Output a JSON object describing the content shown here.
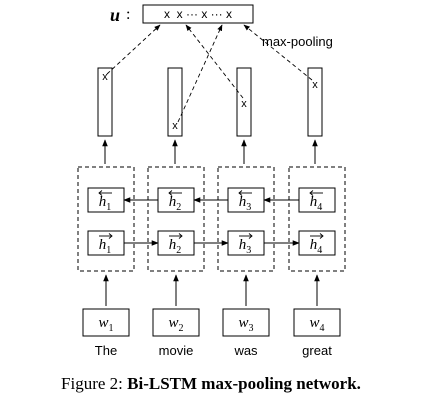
{
  "figure": {
    "output_label": "u",
    "output_colon": ":",
    "output_vector": "x  x ··· x ··· x",
    "pooling_label": "max-pooling",
    "marker": "x",
    "backward_states": [
      "h1",
      "h2",
      "h3",
      "h4"
    ],
    "forward_states": [
      "h1",
      "h2",
      "h3",
      "h4"
    ],
    "inputs": [
      "w1",
      "w2",
      "w3",
      "w4"
    ],
    "words": [
      "The",
      "movie",
      "was",
      "great"
    ]
  },
  "caption": {
    "prefix": "Figure 2: ",
    "title": "Bi-LSTM max-pooling network."
  }
}
